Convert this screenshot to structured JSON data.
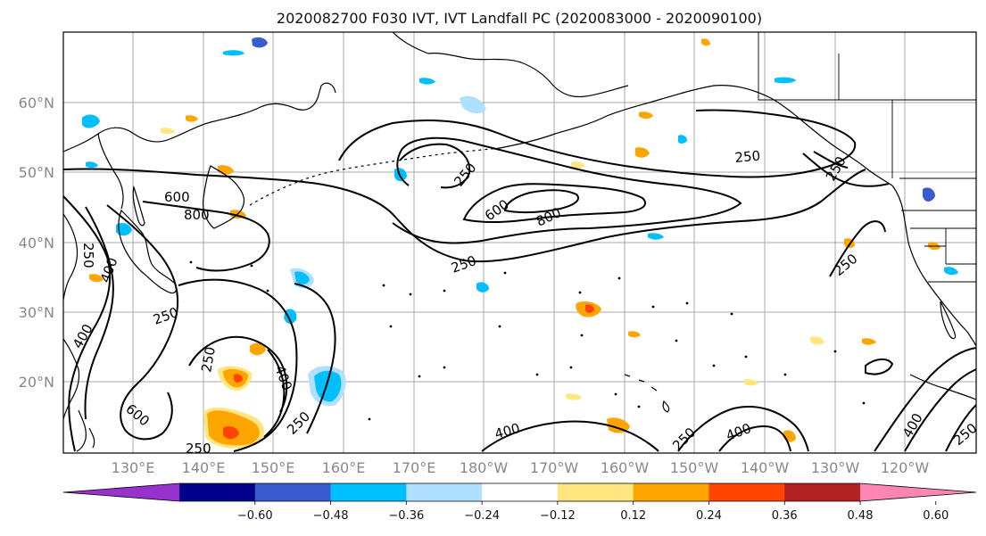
{
  "title": "2020082700 F030 IVT, IVT Landfall PC (2020083000 - 2020090100)",
  "map": {
    "lat_ticks": [
      "60°N",
      "50°N",
      "40°N",
      "30°N",
      "20°N"
    ],
    "lon_ticks": [
      "130°E",
      "140°E",
      "150°E",
      "160°E",
      "170°E",
      "180°W",
      "170°W",
      "160°W",
      "150°W",
      "140°W",
      "130°W",
      "120°W"
    ],
    "ivt_contour_labels": [
      "250",
      "400",
      "600",
      "800",
      "250",
      "600",
      "800",
      "250",
      "250",
      "250",
      "250",
      "400",
      "600",
      "400",
      "250",
      "250",
      "400",
      "250",
      "400",
      "250",
      "250",
      "400",
      "250",
      "600",
      "400",
      "250",
      "400"
    ]
  },
  "colorbar": {
    "ticks": [
      "−0.60",
      "−0.48",
      "−0.36",
      "−0.24",
      "−0.12",
      "0.12",
      "0.24",
      "0.36",
      "0.48",
      "0.60"
    ],
    "colors": [
      "#9932cc",
      "#00008b",
      "#3a5bcd",
      "#00bfff",
      "#b0e0ff",
      "#ffffff",
      "#ffe680",
      "#ffa500",
      "#ff4500",
      "#b22222",
      "#ff85b3"
    ]
  },
  "colors": {
    "neg_strong": "#3a5bcd",
    "neg_mid": "#00bfff",
    "neg_weak": "#b0e0ff",
    "pos_weak": "#ffe680",
    "pos_mid": "#ffa500",
    "pos_strong": "#ff4500"
  }
}
